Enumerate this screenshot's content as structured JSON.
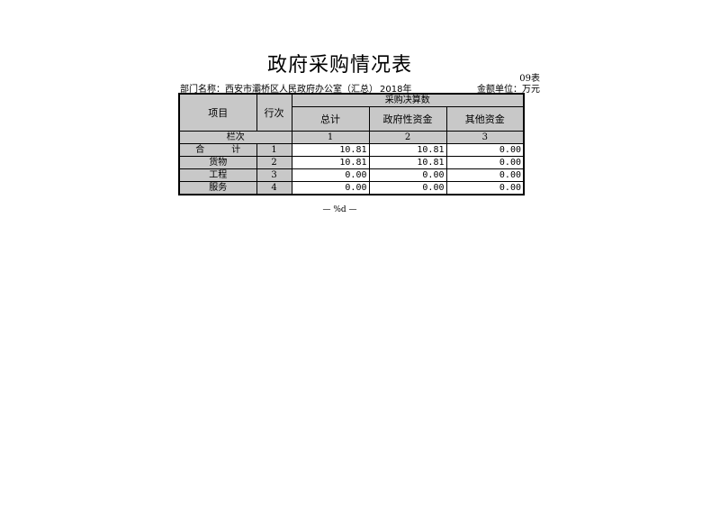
{
  "title": "政府采购情况表",
  "form_no": "09表",
  "department": "部门名称：西安市灞桥区人民政府办公室（汇总）",
  "year": "2018年",
  "unit": "金额单位：万元",
  "headers": {
    "item": "项目",
    "line_no": "行次",
    "group": "采购决算数",
    "total": "总计",
    "gov_fund": "政府性资金",
    "other_fund": "其他资金"
  },
  "column_row": {
    "label": "栏次",
    "c1": "1",
    "c2": "2",
    "c3": "3"
  },
  "rows": [
    {
      "item": "合　　　计",
      "line": "1",
      "total": "10.81",
      "gov": "10.81",
      "other": "0.00"
    },
    {
      "item": "货物",
      "line": "2",
      "total": "10.81",
      "gov": "10.81",
      "other": "0.00"
    },
    {
      "item": "工程",
      "line": "3",
      "total": "0.00",
      "gov": "0.00",
      "other": "0.00"
    },
    {
      "item": "服务",
      "line": "4",
      "total": "0.00",
      "gov": "0.00",
      "other": "0.00"
    }
  ],
  "footer": "— %d —"
}
